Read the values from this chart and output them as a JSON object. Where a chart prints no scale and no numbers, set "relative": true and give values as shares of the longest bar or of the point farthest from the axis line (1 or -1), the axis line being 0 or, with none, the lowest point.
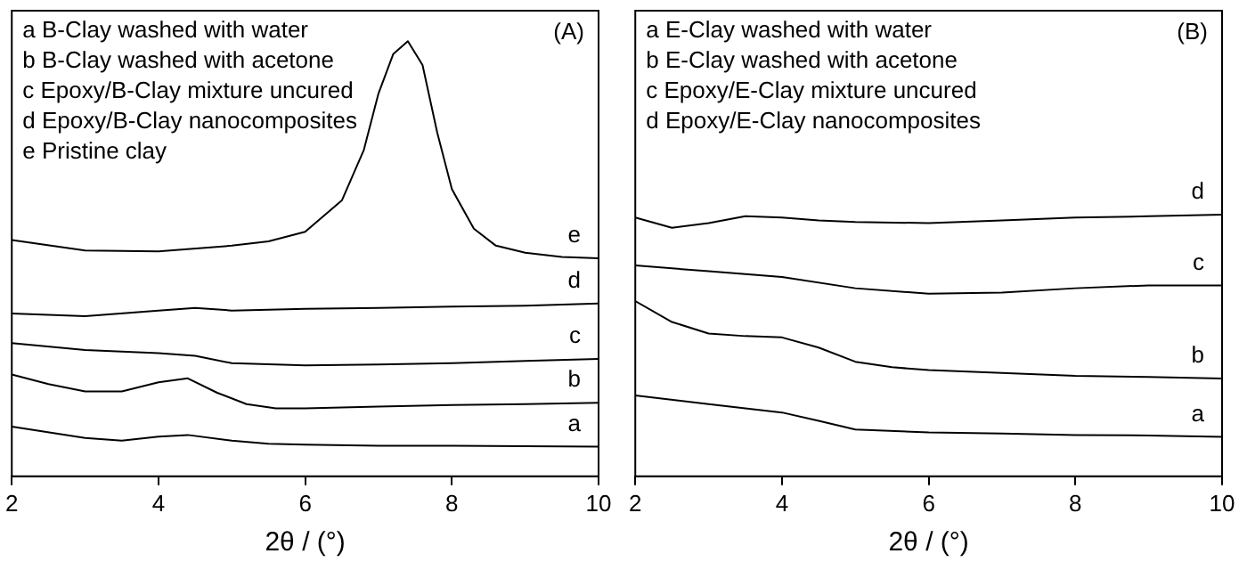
{
  "chart_data": [
    {
      "type": "line",
      "relative": true,
      "xlabel": "2θ / (°)",
      "xlim": [
        2,
        10
      ],
      "xticks": [
        2,
        4,
        6,
        8,
        10
      ],
      "grid": false,
      "legend": false,
      "marker": "none",
      "line_style": "solid",
      "annotations": [
        "a B-Clay washed with water",
        "b B-Clay washed with acetone",
        "c Epoxy/B-Clay mixture uncured",
        "d Epoxy/B-Clay nanocomposites",
        "e Pristine clay",
        "(A)"
      ],
      "series": [
        {
          "name": "a",
          "color": "#000000",
          "x": [
            2,
            3,
            3.5,
            4,
            4.4,
            5,
            5.5,
            6,
            7,
            8,
            9,
            10
          ],
          "values": [
            0.114,
            0.088,
            0.082,
            0.091,
            0.095,
            0.082,
            0.075,
            0.073,
            0.07,
            0.07,
            0.069,
            0.068
          ]
        },
        {
          "name": "b",
          "color": "#000000",
          "x": [
            2,
            2.5,
            3,
            3.5,
            4,
            4.4,
            4.8,
            5.2,
            5.6,
            6,
            7,
            8,
            9,
            10
          ],
          "values": [
            0.234,
            0.212,
            0.195,
            0.195,
            0.216,
            0.225,
            0.192,
            0.166,
            0.156,
            0.156,
            0.16,
            0.164,
            0.166,
            0.169
          ]
        },
        {
          "name": "c",
          "color": "#000000",
          "x": [
            2,
            3,
            4,
            4.5,
            5,
            6,
            7,
            8,
            9,
            10
          ],
          "values": [
            0.306,
            0.29,
            0.283,
            0.277,
            0.26,
            0.255,
            0.257,
            0.26,
            0.265,
            0.27
          ]
        },
        {
          "name": "d",
          "color": "#000000",
          "x": [
            2,
            3,
            4,
            4.5,
            5,
            6,
            7,
            8,
            9,
            10
          ],
          "values": [
            0.374,
            0.368,
            0.381,
            0.387,
            0.381,
            0.385,
            0.387,
            0.39,
            0.392,
            0.397
          ]
        },
        {
          "name": "e",
          "color": "#000000",
          "x": [
            2,
            3,
            4,
            5,
            5.5,
            6,
            6.5,
            6.8,
            7,
            7.2,
            7.4,
            7.6,
            7.8,
            8,
            8.3,
            8.6,
            9,
            9.5,
            10
          ],
          "values": [
            0.543,
            0.519,
            0.517,
            0.53,
            0.54,
            0.562,
            0.634,
            0.75,
            0.88,
            0.97,
            1,
            0.945,
            0.79,
            0.66,
            0.569,
            0.53,
            0.514,
            0.504,
            0.501
          ]
        }
      ]
    },
    {
      "type": "line",
      "relative": true,
      "xlabel": "2θ / (°)",
      "xlim": [
        2,
        10
      ],
      "xticks": [
        2,
        4,
        6,
        8,
        10
      ],
      "grid": false,
      "legend": false,
      "marker": "none",
      "line_style": "solid",
      "annotations": [
        "a E-Clay washed with water",
        "b E-Clay washed with acetone",
        "c Epoxy/E-Clay mixture uncured",
        "d Epoxy/E-Clay nanocomposites",
        "(B)"
      ],
      "series": [
        {
          "name": "a",
          "color": "#000000",
          "x": [
            2,
            3,
            4,
            4.5,
            5,
            6,
            7,
            8,
            9,
            10
          ],
          "values": [
            0.309,
            0.276,
            0.244,
            0.212,
            0.179,
            0.168,
            0.164,
            0.158,
            0.156,
            0.151
          ]
        },
        {
          "name": "b",
          "color": "#000000",
          "x": [
            2,
            2.5,
            3,
            3.5,
            4,
            4.5,
            5,
            5.5,
            6,
            7,
            8,
            9,
            10
          ],
          "values": [
            0.67,
            0.59,
            0.546,
            0.536,
            0.531,
            0.492,
            0.438,
            0.417,
            0.406,
            0.395,
            0.384,
            0.38,
            0.374
          ]
        },
        {
          "name": "c",
          "color": "#000000",
          "x": [
            2,
            3,
            4,
            5,
            6,
            7,
            8,
            9,
            10
          ],
          "values": [
            0.806,
            0.784,
            0.762,
            0.719,
            0.698,
            0.702,
            0.719,
            0.73,
            0.73
          ]
        },
        {
          "name": "d",
          "color": "#000000",
          "x": [
            2,
            2.5,
            3,
            3.5,
            4,
            4.5,
            5,
            6,
            7,
            8,
            9,
            10
          ],
          "values": [
            0.989,
            0.95,
            0.968,
            0.994,
            0.989,
            0.978,
            0.972,
            0.968,
            0.978,
            0.989,
            0.994,
            1
          ]
        }
      ]
    }
  ]
}
